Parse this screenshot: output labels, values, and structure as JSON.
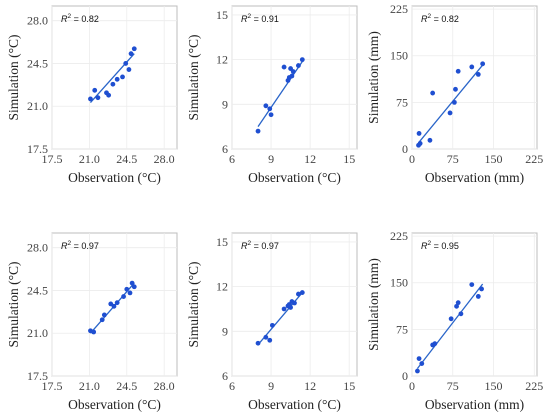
{
  "chart_data": [
    {
      "type": "scatter",
      "r2_label": "R",
      "r2_sup": "2",
      "r2_value": " = 0.82",
      "xlabel": "Observation (°C)",
      "ylabel": "Simulation (°C)",
      "xlim": [
        17.5,
        29.2
      ],
      "ylim": [
        17.5,
        29.2
      ],
      "xticks": [
        "17.5",
        "21.0",
        "24.5",
        "28.0"
      ],
      "yticks": [
        "17.5",
        "21.0",
        "24.5",
        "28.0"
      ],
      "tick_values": [
        17.5,
        21.0,
        24.5,
        28.0
      ],
      "points": [
        [
          21.1,
          21.6
        ],
        [
          21.5,
          22.3
        ],
        [
          21.8,
          21.7
        ],
        [
          22.6,
          22.1
        ],
        [
          22.8,
          21.9
        ],
        [
          23.2,
          22.8
        ],
        [
          23.6,
          23.2
        ],
        [
          24.1,
          23.4
        ],
        [
          24.4,
          24.5
        ],
        [
          24.7,
          24.0
        ],
        [
          24.9,
          25.3
        ],
        [
          25.2,
          25.7
        ]
      ],
      "fit": [
        [
          21.1,
          21.3
        ],
        [
          25.2,
          25.3
        ]
      ]
    },
    {
      "type": "scatter",
      "r2_label": "R",
      "r2_sup": "2",
      "r2_value": " = 0.91",
      "xlabel": "Observation (°C)",
      "ylabel": "Simulation (°C)",
      "xlim": [
        6,
        15.6
      ],
      "ylim": [
        6,
        15.6
      ],
      "xticks": [
        "6",
        "9",
        "12",
        "15"
      ],
      "yticks": [
        "6",
        "9",
        "12",
        "15"
      ],
      "tick_values": [
        6,
        9,
        12,
        15
      ],
      "points": [
        [
          8.0,
          7.2
        ],
        [
          8.6,
          8.9
        ],
        [
          8.9,
          8.7
        ],
        [
          9.0,
          8.3
        ],
        [
          10.0,
          11.5
        ],
        [
          10.3,
          10.6
        ],
        [
          10.4,
          10.8
        ],
        [
          10.6,
          10.9
        ],
        [
          10.7,
          11.2
        ],
        [
          11.1,
          11.6
        ],
        [
          11.4,
          12.0
        ],
        [
          10.5,
          11.4
        ]
      ],
      "fit": [
        [
          8.0,
          7.5
        ],
        [
          11.5,
          12.0
        ]
      ]
    },
    {
      "type": "scatter",
      "r2_label": "R",
      "r2_sup": "2",
      "r2_value": " = 0.82",
      "xlabel": "Observation (mm)",
      "ylabel": "Simulation (mm)",
      "xlim": [
        0,
        230
      ],
      "ylim": [
        0,
        230
      ],
      "xticks": [
        "0",
        "75",
        "150",
        "225"
      ],
      "yticks": [
        "0",
        "75",
        "150",
        "225"
      ],
      "tick_values": [
        0,
        75,
        150,
        225
      ],
      "points": [
        [
          12,
          6
        ],
        [
          15,
          9
        ],
        [
          13,
          25
        ],
        [
          33,
          14
        ],
        [
          38,
          90
        ],
        [
          70,
          58
        ],
        [
          78,
          75
        ],
        [
          80,
          96
        ],
        [
          85,
          125
        ],
        [
          110,
          132
        ],
        [
          122,
          120
        ],
        [
          130,
          137
        ]
      ],
      "fit": [
        [
          12,
          10
        ],
        [
          130,
          135
        ]
      ]
    },
    {
      "type": "scatter",
      "r2_label": "R",
      "r2_sup": "2",
      "r2_value": " = 0.97",
      "xlabel": "Observation (°C)",
      "ylabel": "Simulation (°C)",
      "xlim": [
        17.5,
        29.2
      ],
      "ylim": [
        17.5,
        29.2
      ],
      "xticks": [
        "17.5",
        "21.0",
        "24.5",
        "28.0"
      ],
      "yticks": [
        "17.5",
        "21.0",
        "24.5",
        "28.0"
      ],
      "tick_values": [
        17.5,
        21.0,
        24.5,
        28.0
      ],
      "points": [
        [
          21.1,
          21.2
        ],
        [
          21.4,
          21.1
        ],
        [
          22.2,
          22.1
        ],
        [
          22.4,
          22.5
        ],
        [
          23.0,
          23.4
        ],
        [
          23.3,
          23.2
        ],
        [
          23.6,
          23.5
        ],
        [
          24.2,
          24.0
        ],
        [
          24.5,
          24.6
        ],
        [
          24.8,
          24.3
        ],
        [
          25.0,
          25.1
        ],
        [
          25.2,
          24.8
        ]
      ],
      "fit": [
        [
          21.1,
          21.0
        ],
        [
          25.2,
          25.1
        ]
      ]
    },
    {
      "type": "scatter",
      "r2_label": "R",
      "r2_sup": "2",
      "r2_value": " = 0.97",
      "xlabel": "Observation (°C)",
      "ylabel": "Simulation (°C)",
      "xlim": [
        6,
        15.6
      ],
      "ylim": [
        6,
        15.6
      ],
      "xticks": [
        "6",
        "9",
        "12",
        "15"
      ],
      "yticks": [
        "6",
        "9",
        "12",
        "15"
      ],
      "tick_values": [
        6,
        9,
        12,
        15
      ],
      "points": [
        [
          8.0,
          8.2
        ],
        [
          8.6,
          8.6
        ],
        [
          8.9,
          8.4
        ],
        [
          9.1,
          9.4
        ],
        [
          10.0,
          10.5
        ],
        [
          10.3,
          10.7
        ],
        [
          10.5,
          10.6
        ],
        [
          10.6,
          11.0
        ],
        [
          10.8,
          10.9
        ],
        [
          11.1,
          11.5
        ],
        [
          11.4,
          11.6
        ],
        [
          10.4,
          10.8
        ]
      ],
      "fit": [
        [
          8.0,
          8.1
        ],
        [
          11.5,
          11.7
        ]
      ]
    },
    {
      "type": "scatter",
      "r2_label": "R",
      "r2_sup": "2",
      "r2_value": " = 0.95",
      "xlabel": "Observation (mm)",
      "ylabel": "Simulation (mm)",
      "xlim": [
        0,
        230
      ],
      "ylim": [
        0,
        230
      ],
      "xticks": [
        "0",
        "75",
        "150",
        "225"
      ],
      "yticks": [
        "0",
        "75",
        "150",
        "225"
      ],
      "tick_values": [
        0,
        75,
        150,
        225
      ],
      "points": [
        [
          10,
          8
        ],
        [
          13,
          28
        ],
        [
          18,
          20
        ],
        [
          38,
          50
        ],
        [
          42,
          52
        ],
        [
          72,
          92
        ],
        [
          82,
          112
        ],
        [
          85,
          118
        ],
        [
          90,
          100
        ],
        [
          110,
          147
        ],
        [
          122,
          128
        ],
        [
          128,
          140
        ]
      ],
      "fit": [
        [
          10,
          12
        ],
        [
          130,
          148
        ]
      ]
    }
  ]
}
